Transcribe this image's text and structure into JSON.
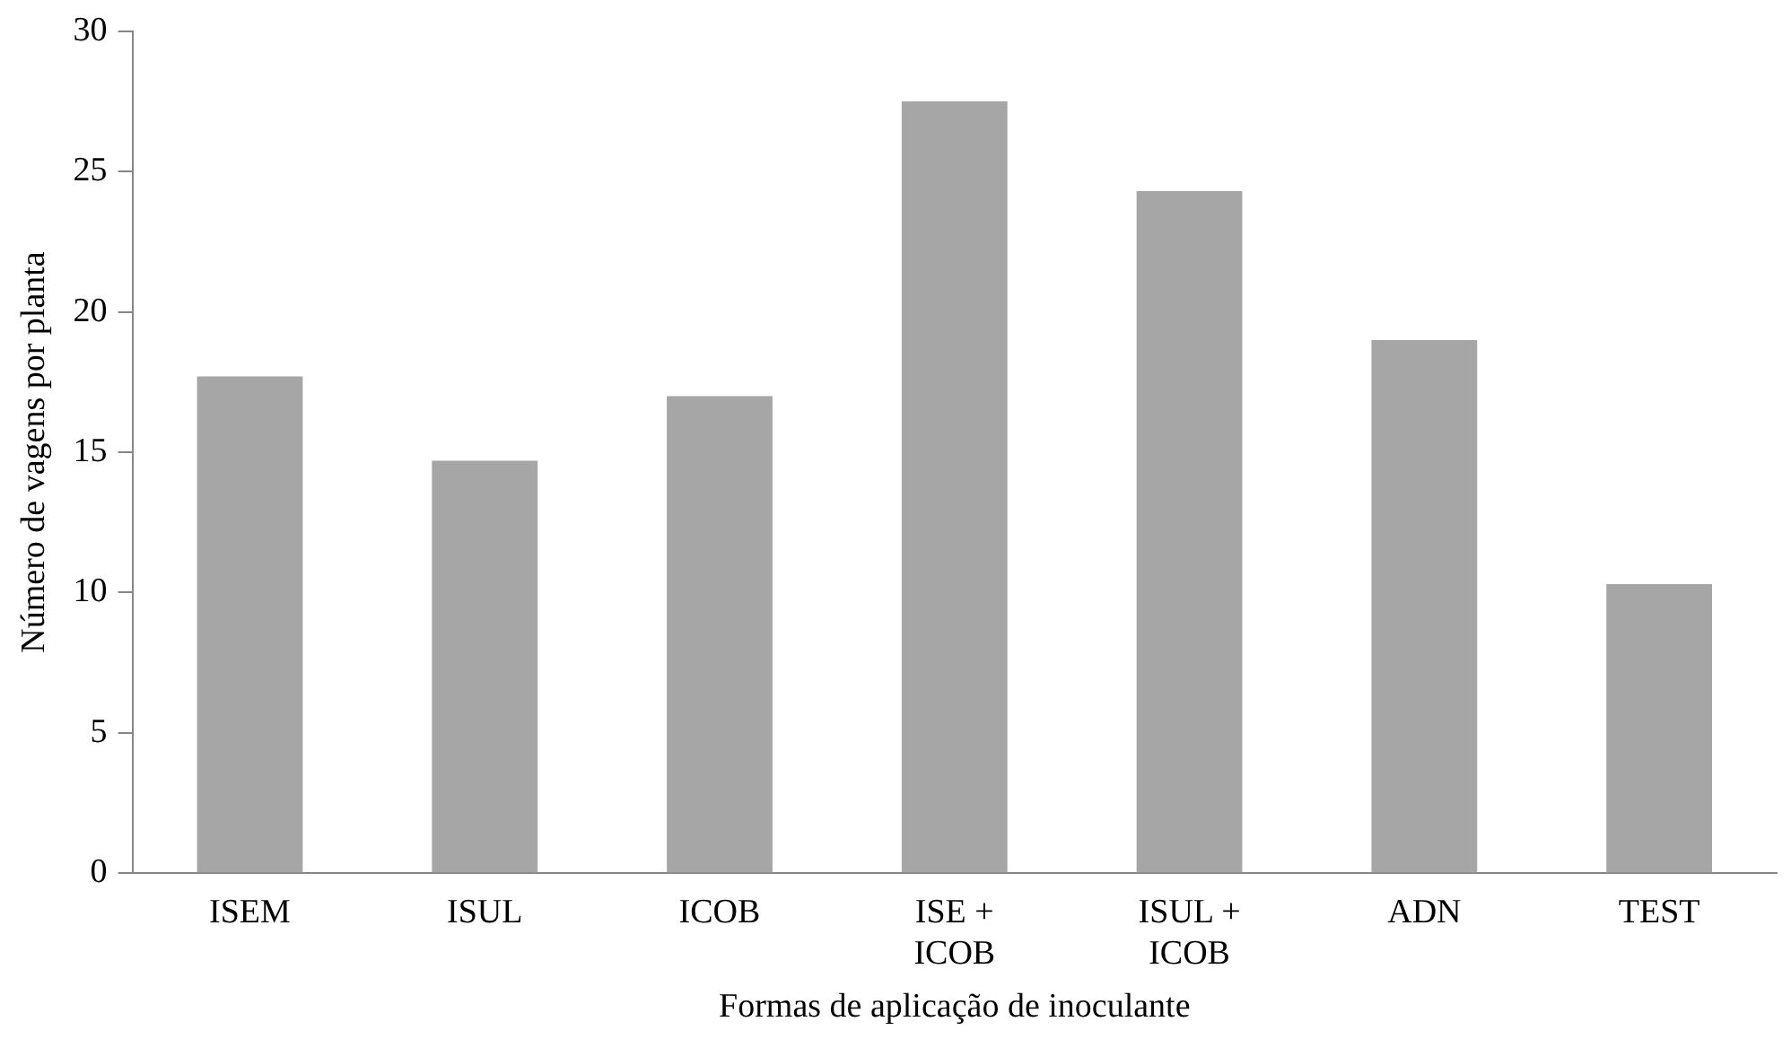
{
  "chart_data": {
    "type": "bar",
    "xlabel": "Formas de aplicação de inoculante",
    "ylabel": "Número de vagens por planta",
    "categories": [
      "ISEM",
      "ISUL",
      "ICOB",
      "ISE + ICOB",
      "ISUL + ICOB",
      "ADN",
      "TEST"
    ],
    "values": [
      17.7,
      14.7,
      17.0,
      27.5,
      24.3,
      19.0,
      10.3
    ],
    "color": "#a6a6a6",
    "ylim": [
      0,
      30
    ],
    "yticks": [
      0,
      5,
      10,
      15,
      20,
      25,
      30
    ],
    "grid": false,
    "legend": false
  }
}
